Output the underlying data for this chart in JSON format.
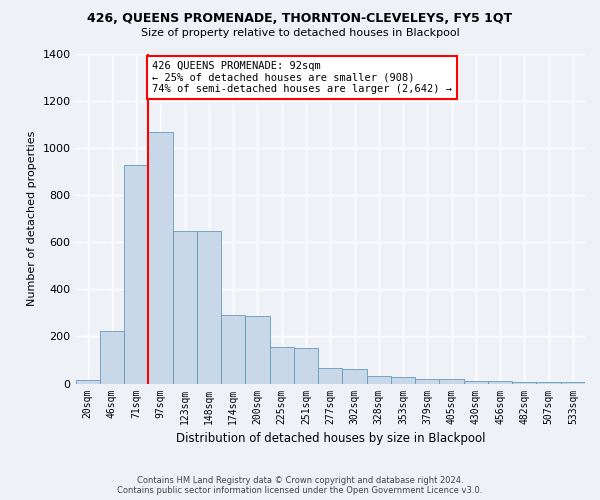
{
  "title": "426, QUEENS PROMENADE, THORNTON-CLEVELEYS, FY5 1QT",
  "subtitle": "Size of property relative to detached houses in Blackpool",
  "xlabel": "Distribution of detached houses by size in Blackpool",
  "ylabel": "Number of detached properties",
  "bar_color": "#c8d8e8",
  "bar_edge_color": "#6699bb",
  "categories": [
    "20sqm",
    "46sqm",
    "71sqm",
    "97sqm",
    "123sqm",
    "148sqm",
    "174sqm",
    "200sqm",
    "225sqm",
    "251sqm",
    "277sqm",
    "302sqm",
    "328sqm",
    "353sqm",
    "379sqm",
    "405sqm",
    "430sqm",
    "456sqm",
    "482sqm",
    "507sqm",
    "533sqm"
  ],
  "values": [
    15,
    225,
    930,
    1070,
    650,
    648,
    290,
    288,
    155,
    153,
    65,
    63,
    30,
    28,
    20,
    18,
    10,
    9,
    8,
    7,
    6
  ],
  "ylim": [
    0,
    1400
  ],
  "yticks": [
    0,
    200,
    400,
    600,
    800,
    1000,
    1200,
    1400
  ],
  "vline_x": 2.5,
  "annotation_text": "426 QUEENS PROMENADE: 92sqm\n← 25% of detached houses are smaller (908)\n74% of semi-detached houses are larger (2,642) →",
  "annotation_box_color": "white",
  "annotation_box_edge_color": "red",
  "vline_color": "red",
  "footer_line1": "Contains HM Land Registry data © Crown copyright and database right 2024.",
  "footer_line2": "Contains public sector information licensed under the Open Government Licence v3.0.",
  "background_color": "#eef2f7",
  "grid_color": "white"
}
